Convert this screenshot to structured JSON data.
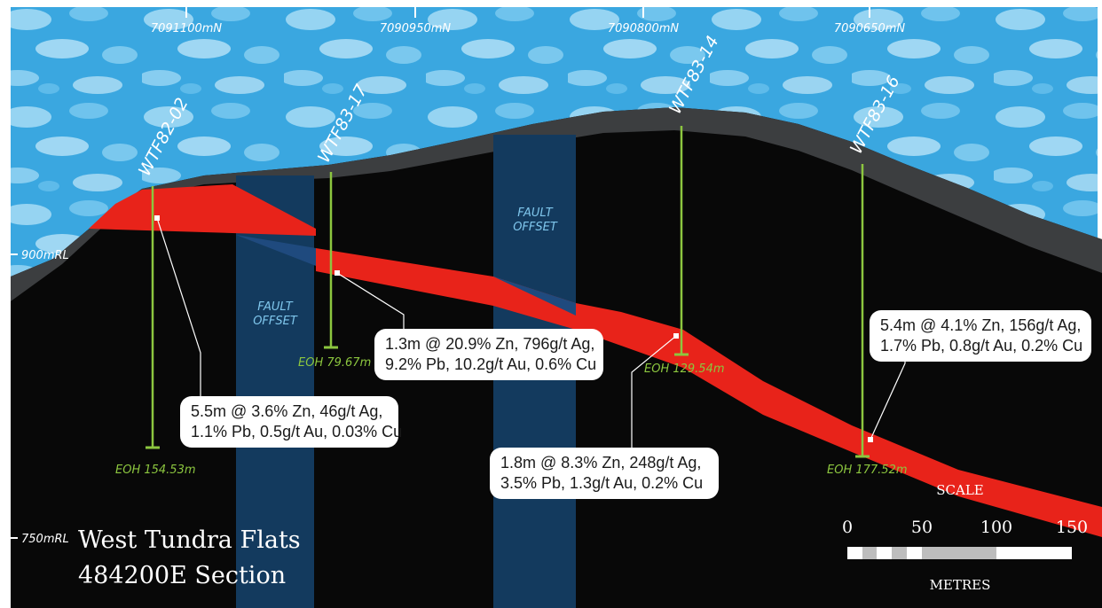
{
  "northings": [
    "7091100mN",
    "7090950mN",
    "7090800mN",
    "7090650mN"
  ],
  "elevations": {
    "upper": "900mRL",
    "lower": "750mRL"
  },
  "fault_label": {
    "line1": "FAULT",
    "line2": "OFFSET"
  },
  "drill_holes": [
    {
      "id": "WTF82-02",
      "eoh": "EOH 154.53m"
    },
    {
      "id": "WTF83-17",
      "eoh": "EOH 79.67m"
    },
    {
      "id": "WTF83-14",
      "eoh": "EOH 129.54m"
    },
    {
      "id": "WTF83-16",
      "eoh": "EOH 177.52m"
    }
  ],
  "intercepts": [
    {
      "line1": "5.5m @ 3.6% Zn, 46g/t Ag,",
      "line2": "1.1% Pb, 0.5g/t Au, 0.03% Cu"
    },
    {
      "line1": "1.3m @ 20.9% Zn, 796g/t Ag,",
      "line2": "9.2% Pb, 10.2g/t Au, 0.6% Cu"
    },
    {
      "line1": "1.8m @ 8.3% Zn, 248g/t Ag,",
      "line2": "3.5% Pb, 1.3g/t Au, 0.2% Cu"
    },
    {
      "line1": "5.4m @ 4.1% Zn, 156g/t Ag,",
      "line2": "1.7% Pb, 0.8g/t Au, 0.2% Cu"
    }
  ],
  "title": {
    "line1": "West Tundra Flats",
    "line2": "484200E Section"
  },
  "scale": {
    "heading": "SCALE",
    "ticks": [
      "0",
      "50",
      "100",
      "150"
    ],
    "unit": "METRES"
  },
  "colors": {
    "sky": "#3aa7e0",
    "ground": "#080808",
    "surface": "#3c3e40",
    "orebody": "#e8231a",
    "fault_zone": "#133a5e",
    "drill_hole": "#8cc63f"
  }
}
